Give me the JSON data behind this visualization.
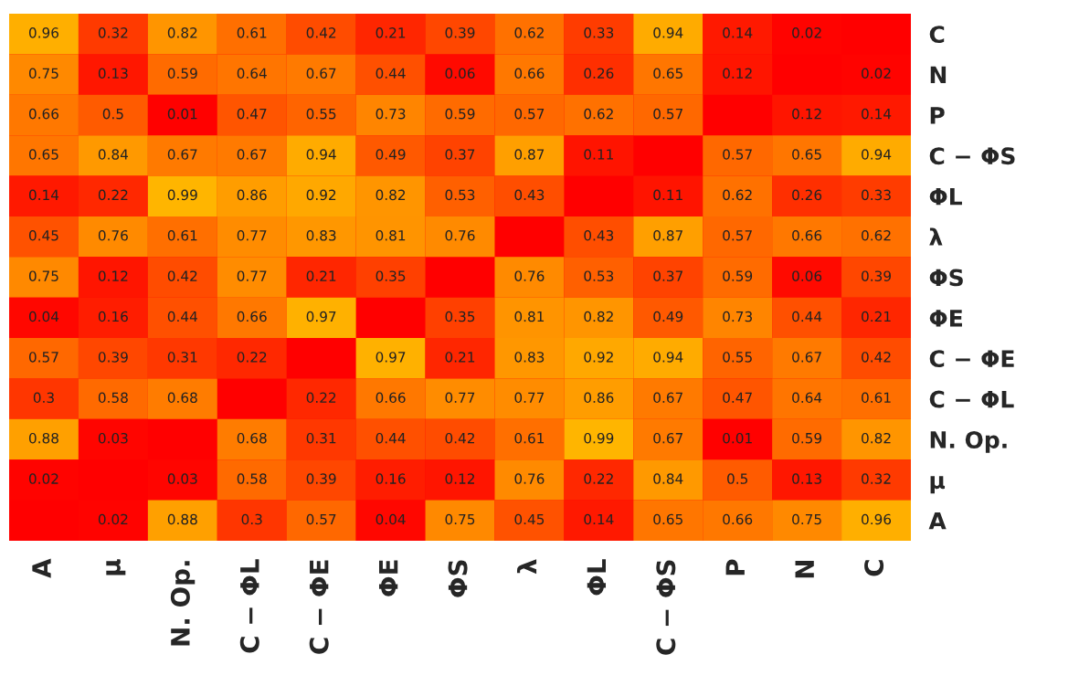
{
  "chart_data": {
    "type": "heatmap",
    "categories": [
      "A",
      "μ",
      "N. Op.",
      "C − ΦL",
      "C − ΦE",
      "ΦE",
      "ΦS",
      "λ",
      "ΦL",
      "C − ΦS",
      "P",
      "N",
      "C"
    ],
    "y_categories": [
      "C",
      "N",
      "P",
      "C − ΦS",
      "ΦL",
      "λ",
      "ΦS",
      "ΦE",
      "C − ΦE",
      "C − ΦL",
      "N. Op.",
      "μ",
      "A"
    ],
    "cells": [
      [
        0.96,
        0.32,
        0.82,
        0.61,
        0.42,
        0.21,
        0.39,
        0.62,
        0.33,
        0.94,
        0.14,
        0.02,
        null
      ],
      [
        0.75,
        0.13,
        0.59,
        0.64,
        0.67,
        0.44,
        0.06,
        0.66,
        0.26,
        0.65,
        0.12,
        null,
        0.02
      ],
      [
        0.66,
        0.5,
        0.01,
        0.47,
        0.55,
        0.73,
        0.59,
        0.57,
        0.62,
        0.57,
        null,
        0.12,
        0.14
      ],
      [
        0.65,
        0.84,
        0.67,
        0.67,
        0.94,
        0.49,
        0.37,
        0.87,
        0.11,
        null,
        0.57,
        0.65,
        0.94
      ],
      [
        0.14,
        0.22,
        0.99,
        0.86,
        0.92,
        0.82,
        0.53,
        0.43,
        null,
        0.11,
        0.62,
        0.26,
        0.33
      ],
      [
        0.45,
        0.76,
        0.61,
        0.77,
        0.83,
        0.81,
        0.76,
        null,
        0.43,
        0.87,
        0.57,
        0.66,
        0.62
      ],
      [
        0.75,
        0.12,
        0.42,
        0.77,
        0.21,
        0.35,
        null,
        0.76,
        0.53,
        0.37,
        0.59,
        0.06,
        0.39
      ],
      [
        0.04,
        0.16,
        0.44,
        0.66,
        0.97,
        null,
        0.35,
        0.81,
        0.82,
        0.49,
        0.73,
        0.44,
        0.21
      ],
      [
        0.57,
        0.39,
        0.31,
        0.22,
        null,
        0.97,
        0.21,
        0.83,
        0.92,
        0.94,
        0.55,
        0.67,
        0.42
      ],
      [
        0.3,
        0.58,
        0.68,
        null,
        0.22,
        0.66,
        0.77,
        0.77,
        0.86,
        0.67,
        0.47,
        0.64,
        0.61
      ],
      [
        0.88,
        0.03,
        null,
        0.68,
        0.31,
        0.44,
        0.42,
        0.61,
        0.99,
        0.67,
        0.01,
        0.59,
        0.82
      ],
      [
        0.02,
        null,
        0.03,
        0.58,
        0.39,
        0.16,
        0.12,
        0.76,
        0.22,
        0.84,
        0.5,
        0.13,
        0.32
      ],
      [
        null,
        0.02,
        0.88,
        0.3,
        0.57,
        0.04,
        0.75,
        0.45,
        0.14,
        0.65,
        0.66,
        0.75,
        0.96
      ]
    ],
    "data_labels": true
  }
}
